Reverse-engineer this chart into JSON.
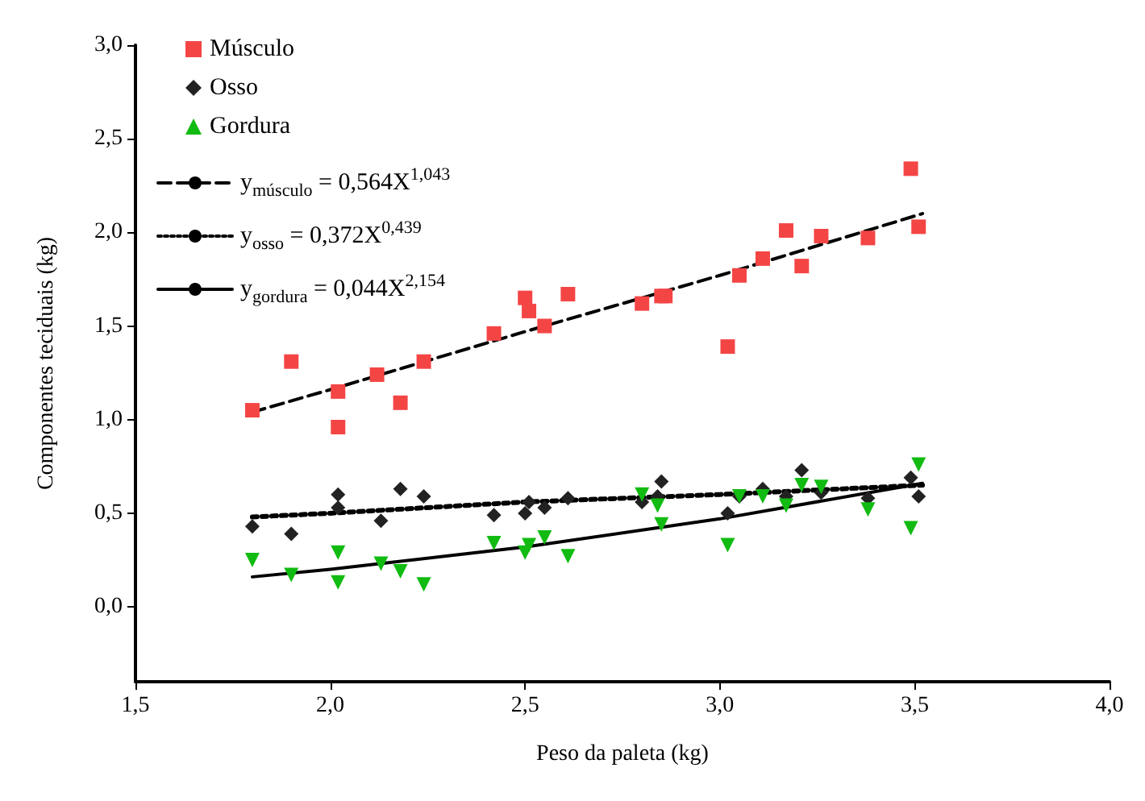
{
  "chart_data": {
    "type": "scatter",
    "xlabel": "Peso da paleta (kg)",
    "ylabel": "Componentes teciduais (kg)",
    "xlim": [
      1.5,
      4.0
    ],
    "ylim": [
      -0.4,
      3.0
    ],
    "xticks": [
      {
        "value": 1.5,
        "label": "1,5"
      },
      {
        "value": 2.0,
        "label": "2,0"
      },
      {
        "value": 2.5,
        "label": "2,5"
      },
      {
        "value": 3.0,
        "label": "3,0"
      },
      {
        "value": 3.5,
        "label": "3,5"
      },
      {
        "value": 4.0,
        "label": "4,0"
      }
    ],
    "yticks": [
      {
        "value": 0,
        "label": "0,0"
      },
      {
        "value": 0.5,
        "label": "0,5"
      },
      {
        "value": 1.0,
        "label": "1,0"
      },
      {
        "value": 1.5,
        "label": "1,5"
      },
      {
        "value": 2.0,
        "label": "2,0"
      },
      {
        "value": 2.5,
        "label": "2,5"
      },
      {
        "value": 3.0,
        "label": "3,0"
      }
    ],
    "grid": false,
    "legend": "top left",
    "series": [
      {
        "name": "Músculo",
        "type": "scatter",
        "marker": "square",
        "color": "#f44545",
        "x": [
          1.8,
          1.9,
          2.02,
          2.02,
          2.12,
          2.18,
          2.24,
          2.42,
          2.5,
          2.51,
          2.55,
          2.61,
          2.8,
          2.85,
          2.86,
          3.02,
          3.05,
          3.11,
          3.17,
          3.21,
          3.26,
          3.38,
          3.49,
          3.51
        ],
        "values": [
          1.05,
          1.31,
          1.15,
          0.96,
          1.24,
          1.09,
          1.31,
          1.46,
          1.65,
          1.58,
          1.5,
          1.67,
          1.62,
          1.66,
          1.66,
          1.39,
          1.77,
          1.86,
          2.01,
          1.82,
          1.98,
          1.97,
          2.34,
          2.03
        ]
      },
      {
        "name": "Osso",
        "type": "scatter",
        "marker": "diamond",
        "color": "#222222",
        "x": [
          1.8,
          1.9,
          2.02,
          2.02,
          2.13,
          2.18,
          2.24,
          2.42,
          2.5,
          2.51,
          2.55,
          2.61,
          2.8,
          2.84,
          2.85,
          3.02,
          3.05,
          3.11,
          3.17,
          3.21,
          3.26,
          3.38,
          3.49,
          3.51
        ],
        "values": [
          0.43,
          0.39,
          0.6,
          0.53,
          0.46,
          0.63,
          0.59,
          0.49,
          0.5,
          0.56,
          0.53,
          0.58,
          0.56,
          0.59,
          0.67,
          0.5,
          0.59,
          0.63,
          0.59,
          0.73,
          0.61,
          0.58,
          0.69,
          0.59
        ]
      },
      {
        "name": "Gordura",
        "type": "scatter",
        "marker": "triangle",
        "color": "#11bb11",
        "x": [
          1.8,
          1.9,
          2.02,
          2.02,
          2.13,
          2.18,
          2.24,
          2.42,
          2.5,
          2.51,
          2.55,
          2.61,
          2.8,
          2.84,
          2.85,
          3.02,
          3.05,
          3.11,
          3.17,
          3.21,
          3.26,
          3.38,
          3.49,
          3.51
        ],
        "values": [
          0.25,
          0.17,
          0.29,
          0.13,
          0.23,
          0.19,
          0.12,
          0.34,
          0.29,
          0.33,
          0.37,
          0.27,
          0.6,
          0.54,
          0.44,
          0.33,
          0.59,
          0.59,
          0.54,
          0.65,
          0.64,
          0.52,
          0.42,
          0.76
        ]
      },
      {
        "name": "y$_{músculo}$ = 0,564X$^{1,043}$",
        "type": "line",
        "marker": "none",
        "line_style": "dashed",
        "color": "#000000",
        "x": [
          1.8,
          2.0,
          2.5,
          3.0,
          3.52
        ],
        "values": [
          1.04,
          1.16,
          1.47,
          1.77,
          2.1
        ]
      },
      {
        "name": "y$_{osso}$ = 0,372X$^{0,439}$",
        "type": "line",
        "marker": "none",
        "line_style": "dotted",
        "color": "#000000",
        "x": [
          1.8,
          2.0,
          2.5,
          3.0,
          3.52
        ],
        "values": [
          0.48,
          0.5,
          0.56,
          0.6,
          0.65
        ]
      },
      {
        "name": "y$_{gordura}$ = 0,044X$^{2,154}$",
        "type": "line",
        "marker": "none",
        "line_style": "solid",
        "color": "#000000",
        "x": [
          1.8,
          2.0,
          2.5,
          3.0,
          3.52
        ],
        "values": [
          0.16,
          0.2,
          0.32,
          0.47,
          0.66
        ]
      }
    ]
  }
}
